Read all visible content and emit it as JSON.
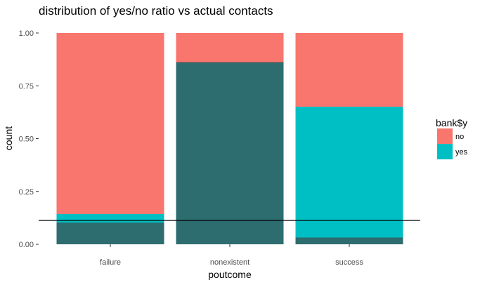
{
  "chart_data": {
    "type": "bar",
    "stacked": "fill",
    "title": "distribution of yes/no ratio vs actual contacts",
    "xlabel": "poutcome",
    "ylabel": "count",
    "categories": [
      "failure",
      "nonexistent",
      "success"
    ],
    "series": [
      {
        "name": "no",
        "color": "#F8766D",
        "values": [
          0.857,
          0.139,
          0.349
        ]
      },
      {
        "name": "yes",
        "color": "#00BFC4",
        "values": [
          0.143,
          0.861,
          0.651
        ]
      }
    ],
    "ylim": [
      0,
      1
    ],
    "yticks": [
      0,
      0.25,
      0.5,
      0.75,
      1
    ],
    "ytick_labels": [
      "0.00",
      "0.25",
      "0.50",
      "0.75",
      "1.00"
    ],
    "overlay_bars": {
      "color": "#5a1a1a",
      "opacity": 0.5,
      "values": [
        0.103,
        0.863,
        0.032
      ]
    },
    "hline": {
      "y": 0.113,
      "color": "#000000"
    },
    "legend": {
      "title": "bank$y",
      "position": "right"
    },
    "grid": false
  }
}
